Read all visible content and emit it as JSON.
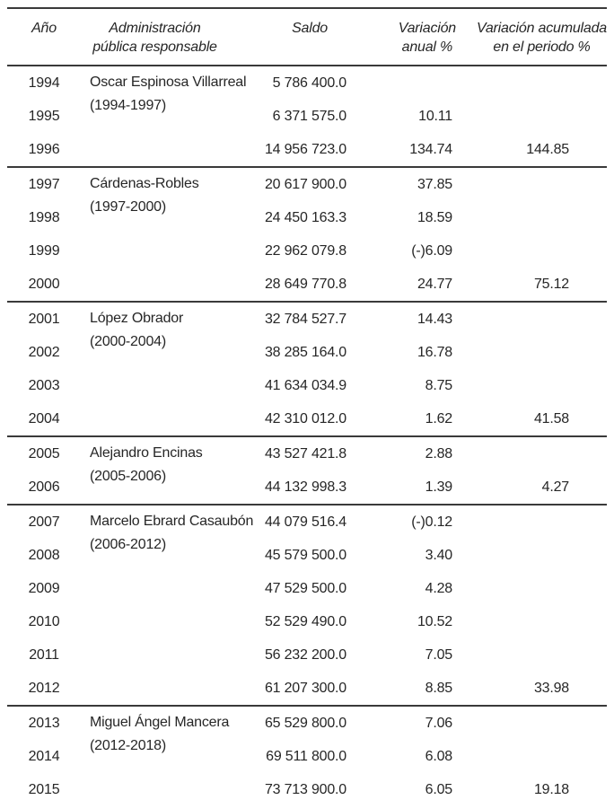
{
  "page": {
    "background": "#ffffff",
    "text_color": "#262626",
    "rule_color": "#3a3a3a"
  },
  "table": {
    "headers": {
      "col_year": "Año",
      "col_admin_line1": "Administración",
      "col_admin_line2": "pública responsable",
      "col_saldo": "Saldo",
      "col_var_line1": "Variación",
      "col_var_line2": "anual %",
      "col_acum_line1": "Variación acumulada",
      "col_acum_line2": "en el periodo %"
    },
    "groups": [
      {
        "admin_name": "Oscar Espinosa Villarreal",
        "admin_period": "(1994-1997)",
        "rows": [
          {
            "year": "1994",
            "saldo": "5 786 400.0",
            "var_anual": "",
            "var_acumulada": ""
          },
          {
            "year": "1995",
            "saldo": "6 371 575.0",
            "var_anual": "10.11",
            "var_acumulada": ""
          },
          {
            "year": "1996",
            "saldo": "14 956 723.0",
            "var_anual": "134.74",
            "var_acumulada": "144.85"
          }
        ]
      },
      {
        "admin_name": "Cárdenas-Robles",
        "admin_period": "(1997-2000)",
        "rows": [
          {
            "year": "1997",
            "saldo": "20 617 900.0",
            "var_anual": "37.85",
            "var_acumulada": ""
          },
          {
            "year": "1998",
            "saldo": "24 450 163.3",
            "var_anual": "18.59",
            "var_acumulada": ""
          },
          {
            "year": "1999",
            "saldo": "22 962 079.8",
            "var_anual": "(-)6.09",
            "var_acumulada": ""
          },
          {
            "year": "2000",
            "saldo": "28 649 770.8",
            "var_anual": "24.77",
            "var_acumulada": "75.12"
          }
        ]
      },
      {
        "admin_name": "López Obrador",
        "admin_period": "(2000-2004)",
        "rows": [
          {
            "year": "2001",
            "saldo": "32 784 527.7",
            "var_anual": "14.43",
            "var_acumulada": ""
          },
          {
            "year": "2002",
            "saldo": "38 285 164.0",
            "var_anual": "16.78",
            "var_acumulada": ""
          },
          {
            "year": "2003",
            "saldo": "41 634 034.9",
            "var_anual": "8.75",
            "var_acumulada": ""
          },
          {
            "year": "2004",
            "saldo": "42 310 012.0",
            "var_anual": "1.62",
            "var_acumulada": "41.58"
          }
        ]
      },
      {
        "admin_name": "Alejandro Encinas",
        "admin_period": "(2005-2006)",
        "rows": [
          {
            "year": "2005",
            "saldo": "43 527 421.8",
            "var_anual": "2.88",
            "var_acumulada": ""
          },
          {
            "year": "2006",
            "saldo": "44 132 998.3",
            "var_anual": "1.39",
            "var_acumulada": "4.27"
          }
        ]
      },
      {
        "admin_name": "Marcelo Ebrard Casaubón",
        "admin_period": "(2006-2012)",
        "rows": [
          {
            "year": "2007",
            "saldo": "44 079 516.4",
            "var_anual": "(-)0.12",
            "var_acumulada": ""
          },
          {
            "year": "2008",
            "saldo": "45 579 500.0",
            "var_anual": "3.40",
            "var_acumulada": ""
          },
          {
            "year": "2009",
            "saldo": "47 529 500.0",
            "var_anual": "4.28",
            "var_acumulada": ""
          },
          {
            "year": "2010",
            "saldo": "52 529 490.0",
            "var_anual": "10.52",
            "var_acumulada": ""
          },
          {
            "year": "2011",
            "saldo": "56 232 200.0",
            "var_anual": "7.05",
            "var_acumulada": ""
          },
          {
            "year": "2012",
            "saldo": "61 207 300.0",
            "var_anual": "8.85",
            "var_acumulada": "33.98"
          }
        ]
      },
      {
        "admin_name": "Miguel Ángel Mancera",
        "admin_period": "(2012-2018)",
        "rows": [
          {
            "year": "2013",
            "saldo": "65 529 800.0",
            "var_anual": "7.06",
            "var_acumulada": ""
          },
          {
            "year": "2014",
            "saldo": "69 511 800.0",
            "var_anual": "6.08",
            "var_acumulada": ""
          },
          {
            "year": "2015",
            "saldo": "73 713 900.0",
            "var_anual": "6.05",
            "var_acumulada": "19.18"
          }
        ]
      }
    ]
  }
}
